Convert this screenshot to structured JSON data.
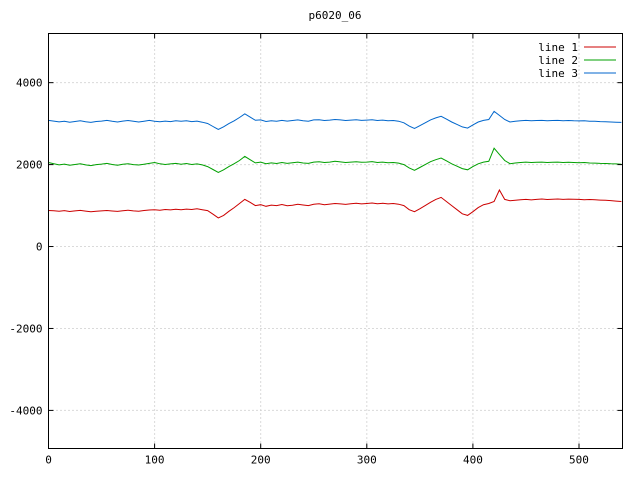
{
  "layout_colors": {
    "background": "#ffffff",
    "border": "#000000",
    "grid": "#b5b5b5",
    "text": "#000000"
  },
  "chart_data": {
    "type": "line",
    "title": "p6020_06",
    "xlabel": "",
    "ylabel": "",
    "xlim": [
      0,
      541
    ],
    "ylim": [
      -4930,
      5200
    ],
    "xticks": [
      0,
      100,
      200,
      300,
      400,
      500
    ],
    "yticks": [
      -4000,
      -2000,
      0,
      2000,
      4000
    ],
    "grid": true,
    "legend_position": "top-right",
    "x": [
      0,
      5,
      10,
      15,
      20,
      25,
      30,
      35,
      40,
      45,
      50,
      55,
      60,
      65,
      70,
      75,
      80,
      85,
      90,
      95,
      100,
      105,
      110,
      115,
      120,
      125,
      130,
      135,
      140,
      145,
      150,
      155,
      160,
      165,
      170,
      175,
      180,
      185,
      190,
      195,
      200,
      205,
      210,
      215,
      220,
      225,
      230,
      235,
      240,
      245,
      250,
      255,
      260,
      265,
      270,
      275,
      280,
      285,
      290,
      295,
      300,
      305,
      310,
      315,
      320,
      325,
      330,
      335,
      340,
      345,
      350,
      355,
      360,
      365,
      370,
      375,
      380,
      385,
      390,
      395,
      400,
      405,
      410,
      415,
      420,
      425,
      430,
      435,
      440,
      445,
      450,
      455,
      460,
      465,
      470,
      475,
      480,
      485,
      490,
      495,
      500,
      505,
      510,
      515,
      520,
      525,
      530,
      535,
      540
    ],
    "series": [
      {
        "name": "line 1",
        "color": "#cc0000",
        "values": [
          880,
          872,
          860,
          876,
          856,
          870,
          882,
          866,
          850,
          862,
          870,
          880,
          868,
          858,
          874,
          886,
          870,
          860,
          880,
          892,
          900,
          888,
          904,
          894,
          910,
          898,
          914,
          904,
          920,
          900,
          878,
          790,
          700,
          760,
          860,
          950,
          1050,
          1150,
          1080,
          1000,
          1022,
          982,
          1012,
          1000,
          1026,
          996,
          1010,
          1032,
          1014,
          1000,
          1030,
          1042,
          1020,
          1036,
          1050,
          1040,
          1028,
          1046,
          1056,
          1040,
          1050,
          1062,
          1044,
          1056,
          1040,
          1050,
          1034,
          1000,
          900,
          850,
          920,
          1000,
          1080,
          1150,
          1200,
          1100,
          1000,
          900,
          800,
          760,
          850,
          950,
          1020,
          1050,
          1100,
          1380,
          1150,
          1118,
          1130,
          1142,
          1150,
          1138,
          1150,
          1160,
          1148,
          1156,
          1160,
          1150,
          1158,
          1154,
          1150,
          1144,
          1148,
          1140,
          1134,
          1128,
          1120,
          1110,
          1100
        ]
      },
      {
        "name": "line 2",
        "color": "#00a000",
        "values": [
          2050,
          2022,
          1992,
          2012,
          1982,
          2002,
          2020,
          1992,
          1976,
          2000,
          2012,
          2030,
          2002,
          1986,
          2006,
          2020,
          2000,
          1990,
          2010,
          2030,
          2050,
          2020,
          2002,
          2016,
          2030,
          2010,
          2026,
          2002,
          2016,
          1992,
          1952,
          1880,
          1810,
          1872,
          1950,
          2022,
          2100,
          2200,
          2120,
          2042,
          2060,
          2022,
          2042,
          2026,
          2050,
          2030,
          2046,
          2060,
          2040,
          2030,
          2060,
          2070,
          2050,
          2060,
          2080,
          2066,
          2050,
          2062,
          2070,
          2056,
          2060,
          2072,
          2050,
          2060,
          2046,
          2050,
          2036,
          2000,
          1920,
          1860,
          1930,
          2000,
          2070,
          2120,
          2160,
          2092,
          2020,
          1962,
          1902,
          1872,
          1950,
          2020,
          2060,
          2080,
          2400,
          2250,
          2100,
          2022,
          2040,
          2050,
          2060,
          2050,
          2056,
          2060,
          2050,
          2056,
          2060,
          2050,
          2056,
          2050,
          2046,
          2050,
          2040,
          2036,
          2030,
          2026,
          2020,
          2016,
          2010
        ]
      },
      {
        "name": "line 3",
        "color": "#0066cc",
        "values": [
          3080,
          3062,
          3042,
          3060,
          3032,
          3052,
          3070,
          3046,
          3030,
          3052,
          3062,
          3080,
          3056,
          3040,
          3062,
          3076,
          3056,
          3040,
          3060,
          3080,
          3060,
          3046,
          3062,
          3050,
          3070,
          3056,
          3072,
          3050,
          3062,
          3036,
          3002,
          2930,
          2860,
          2922,
          3000,
          3070,
          3150,
          3240,
          3160,
          3082,
          3090,
          3052,
          3072,
          3060,
          3080,
          3062,
          3076,
          3090,
          3070,
          3060,
          3090,
          3096,
          3076,
          3086,
          3100,
          3090,
          3076,
          3086,
          3096,
          3080,
          3086,
          3096,
          3076,
          3086,
          3070,
          3076,
          3060,
          3020,
          2940,
          2880,
          2950,
          3020,
          3090,
          3140,
          3180,
          3110,
          3040,
          2980,
          2920,
          2890,
          2970,
          3040,
          3080,
          3100,
          3300,
          3200,
          3100,
          3040,
          3060,
          3070,
          3080,
          3070,
          3076,
          3080,
          3070,
          3076,
          3080,
          3070,
          3076,
          3070,
          3066,
          3070,
          3060,
          3056,
          3050,
          3046,
          3040,
          3036,
          3030
        ]
      }
    ]
  }
}
